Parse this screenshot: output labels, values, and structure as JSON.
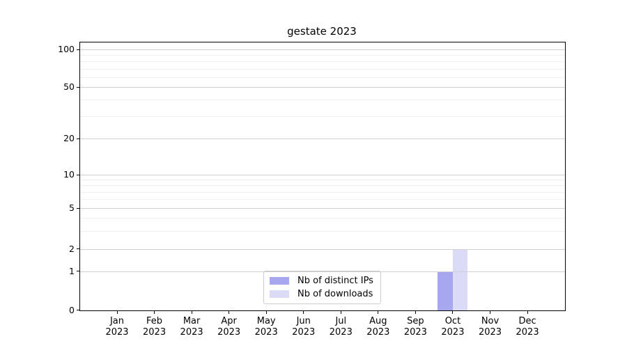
{
  "chart_data": {
    "type": "bar",
    "title": "gestate 2023",
    "x_tick_months": [
      "Jan",
      "Feb",
      "Mar",
      "Apr",
      "May",
      "Jun",
      "Jul",
      "Aug",
      "Sep",
      "Oct",
      "Nov",
      "Dec"
    ],
    "x_tick_year": "2023",
    "series": [
      {
        "name": "Nb of distinct IPs",
        "color": "#a7a7f0",
        "values": [
          0,
          0,
          0,
          0,
          0,
          0,
          0,
          0,
          0,
          1,
          0,
          0
        ]
      },
      {
        "name": "Nb of downloads",
        "color": "#dbdbf8",
        "values": [
          0,
          0,
          0,
          0,
          0,
          0,
          0,
          0,
          0,
          2,
          0,
          0
        ]
      }
    ],
    "y_major_ticks": [
      0,
      1,
      2,
      5,
      10,
      20,
      50,
      100
    ],
    "y_minor_ticks": [
      3,
      4,
      6,
      7,
      8,
      9,
      30,
      40,
      60,
      70,
      80,
      90
    ],
    "ylim": [
      0,
      113
    ],
    "yscale": "symlog",
    "grid": "horizontal",
    "legend_position": "lower-center",
    "colors": {
      "major_grid": "#d0d0d0",
      "minor_grid": "#efefef",
      "spine": "#000000",
      "legend_border": "#cccccc",
      "background": "#ffffff"
    }
  }
}
